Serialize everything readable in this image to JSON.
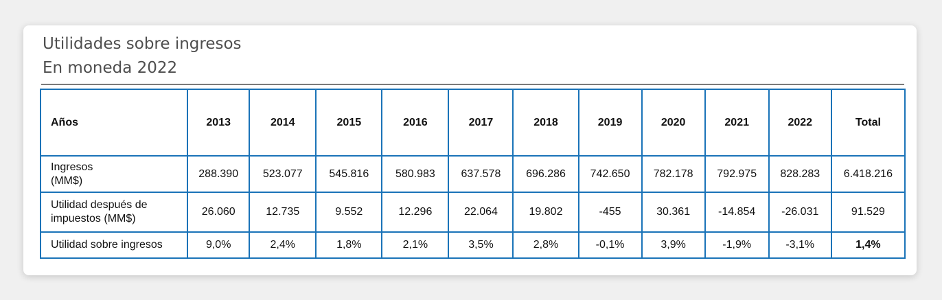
{
  "title": {
    "line1": "Utilidades sobre ingresos",
    "line2": "En moneda 2022"
  },
  "table": {
    "headers": [
      "Años",
      "2013",
      "2014",
      "2015",
      "2016",
      "2017",
      "2018",
      "2019",
      "2020",
      "2021",
      "2022",
      "Total"
    ],
    "rows": [
      {
        "label": "Ingresos\n(MM$)",
        "values": [
          "288.390",
          "523.077",
          "545.816",
          "580.983",
          "637.578",
          "696.286",
          "742.650",
          "782.178",
          "792.975",
          "828.283",
          "6.418.216"
        ]
      },
      {
        "label": "Utilidad después de impuestos (MM$)",
        "values": [
          "26.060",
          "12.735",
          "9.552",
          "12.296",
          "22.064",
          "19.802",
          "-455",
          "30.361",
          "-14.854",
          "-26.031",
          "91.529"
        ]
      },
      {
        "label": "Utilidad sobre ingresos",
        "values": [
          "9,0%",
          "2,4%",
          "1,8%",
          "2,1%",
          "3,5%",
          "2,8%",
          "-0,1%",
          "3,9%",
          "-1,9%",
          "-3,1%",
          "1,4%"
        ]
      }
    ]
  },
  "colors": {
    "grid": "#1a73b8",
    "title": "#4e4e4e"
  }
}
